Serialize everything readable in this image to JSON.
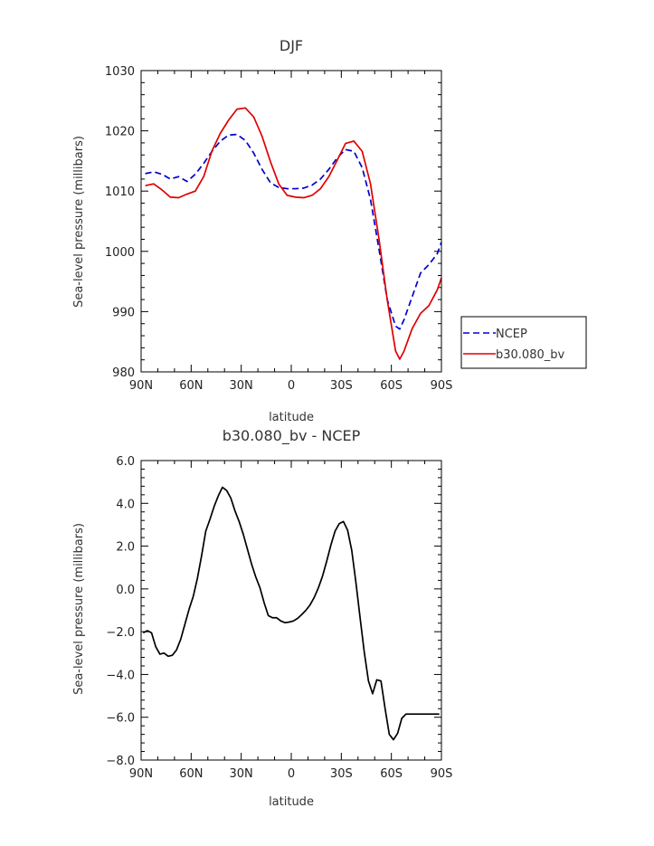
{
  "chart_data": [
    {
      "type": "line",
      "title": "DJF",
      "xlabel": "latitude",
      "ylabel": "Sea-level pressure (millibars)",
      "xlim": [
        90,
        -90
      ],
      "ylim": [
        980,
        1030
      ],
      "xticks": [
        90,
        60,
        30,
        0,
        -30,
        -60,
        -90
      ],
      "xticklabels": [
        "90N",
        "60N",
        "30N",
        "0",
        "30S",
        "60S",
        "90S"
      ],
      "yticks": [
        980,
        990,
        1000,
        1010,
        1020,
        1030
      ],
      "yticklabels": [
        "980",
        "990",
        "1000",
        "1010",
        "1020",
        "1030"
      ],
      "legend": "right",
      "series": [
        {
          "name": "NCEP",
          "color": "#0000cc",
          "style": "dashed",
          "x": [
            87.5,
            82.5,
            77.5,
            72.5,
            67.5,
            62.5,
            57.5,
            52.5,
            47.5,
            42.5,
            37.5,
            32.5,
            27.5,
            22.5,
            17.5,
            12.5,
            7.5,
            2.5,
            -2.5,
            -7.5,
            -12.5,
            -17.5,
            -22.5,
            -27.5,
            -32.5,
            -37.5,
            -42.5,
            -47.5,
            -52.5,
            -57.5,
            -62.5,
            -65.0,
            -67.5,
            -72.5,
            -77.5,
            -82.5,
            -87.5,
            -90.0
          ],
          "y": [
            1012.9,
            1013.2,
            1012.8,
            1012.0,
            1012.4,
            1011.6,
            1012.8,
            1014.6,
            1016.6,
            1018.3,
            1019.3,
            1019.4,
            1018.4,
            1016.3,
            1013.6,
            1011.4,
            1010.6,
            1010.4,
            1010.4,
            1010.5,
            1011.0,
            1012.0,
            1013.6,
            1015.5,
            1016.9,
            1016.6,
            1013.9,
            1008.6,
            1000.5,
            992.0,
            987.6,
            987.1,
            988.6,
            992.5,
            996.4,
            997.8,
            999.6,
            1001.5
          ]
        },
        {
          "name": "b30.080_bv",
          "color": "#e00000",
          "style": "solid",
          "x": [
            87.5,
            82.5,
            77.5,
            72.5,
            67.5,
            62.5,
            57.5,
            52.5,
            47.5,
            42.5,
            37.5,
            32.5,
            27.5,
            22.5,
            17.5,
            12.5,
            7.5,
            2.5,
            -2.5,
            -7.5,
            -12.5,
            -17.5,
            -22.5,
            -27.5,
            -32.5,
            -37.5,
            -42.5,
            -47.5,
            -52.5,
            -57.5,
            -62.5,
            -65.0,
            -67.5,
            -72.5,
            -77.5,
            -82.5,
            -87.5,
            -90.0
          ],
          "y": [
            1010.9,
            1011.2,
            1010.2,
            1009.0,
            1008.9,
            1009.5,
            1010.0,
            1012.4,
            1016.7,
            1019.6,
            1021.8,
            1023.6,
            1023.8,
            1022.3,
            1019.1,
            1014.9,
            1011.2,
            1009.3,
            1009.0,
            1008.9,
            1009.3,
            1010.4,
            1012.4,
            1015.1,
            1017.9,
            1018.3,
            1016.6,
            1011.2,
            1002.2,
            992.0,
            983.5,
            982.1,
            983.4,
            987.2,
            989.7,
            991.0,
            993.6,
            995.6
          ]
        }
      ]
    },
    {
      "type": "line",
      "title": "b30.080_bv - NCEP",
      "xlabel": "latitude",
      "ylabel": "Sea-level pressure (millibars)",
      "xlim": [
        90,
        -90
      ],
      "ylim": [
        -8.0,
        6.0
      ],
      "xticks": [
        90,
        60,
        30,
        0,
        -30,
        -60,
        -90
      ],
      "xticklabels": [
        "90N",
        "60N",
        "30N",
        "0",
        "30S",
        "60S",
        "90S"
      ],
      "yticks": [
        -8.0,
        -6.0,
        -4.0,
        -2.0,
        0.0,
        2.0,
        4.0,
        6.0
      ],
      "yticklabels": [
        "−8.0",
        "−6.0",
        "−4.0",
        "−2.0",
        "0.0",
        "2.0",
        "4.0",
        "6.0"
      ],
      "series": [
        {
          "color": "#000000",
          "style": "solid",
          "x": [
            88.75,
            86.25,
            83.75,
            81.25,
            78.75,
            76.25,
            73.75,
            71.25,
            68.75,
            66.25,
            63.75,
            61.25,
            58.75,
            56.25,
            53.75,
            51.25,
            48.75,
            46.25,
            43.75,
            41.25,
            38.75,
            36.25,
            33.75,
            31.25,
            28.75,
            26.25,
            23.75,
            21.25,
            18.75,
            16.25,
            13.75,
            11.25,
            8.75,
            6.25,
            3.75,
            1.25,
            -1.25,
            -3.75,
            -6.25,
            -8.75,
            -11.25,
            -13.75,
            -16.25,
            -18.75,
            -21.25,
            -23.75,
            -26.25,
            -28.75,
            -31.25,
            -33.75,
            -36.25,
            -38.75,
            -41.25,
            -43.75,
            -46.25,
            -48.75,
            -51.25,
            -53.75,
            -56.25,
            -58.75,
            -61.25,
            -63.75,
            -66.25,
            -68.75,
            -71.25,
            -73.75,
            -76.25,
            -78.75,
            -81.25,
            -83.75,
            -86.25,
            -88.75
          ],
          "y": [
            -2.05,
            -1.95,
            -2.05,
            -2.7,
            -3.05,
            -3.0,
            -3.15,
            -3.1,
            -2.85,
            -2.35,
            -1.65,
            -0.95,
            -0.35,
            0.5,
            1.55,
            2.7,
            3.25,
            3.85,
            4.35,
            4.75,
            4.6,
            4.25,
            3.65,
            3.15,
            2.55,
            1.85,
            1.15,
            0.55,
            0.05,
            -0.65,
            -1.25,
            -1.35,
            -1.35,
            -1.5,
            -1.58,
            -1.55,
            -1.5,
            -1.38,
            -1.2,
            -1.0,
            -0.75,
            -0.4,
            0.05,
            0.6,
            1.3,
            2.05,
            2.7,
            3.05,
            3.15,
            2.75,
            1.8,
            0.3,
            -1.35,
            -2.95,
            -4.3,
            -4.9,
            -4.25,
            -4.3,
            -5.6,
            -6.8,
            -7.05,
            -6.75,
            -6.05,
            -5.85,
            -5.85,
            -5.85,
            -5.85,
            -5.85,
            -5.85,
            -5.85,
            -5.85,
            -5.85
          ]
        }
      ]
    }
  ]
}
